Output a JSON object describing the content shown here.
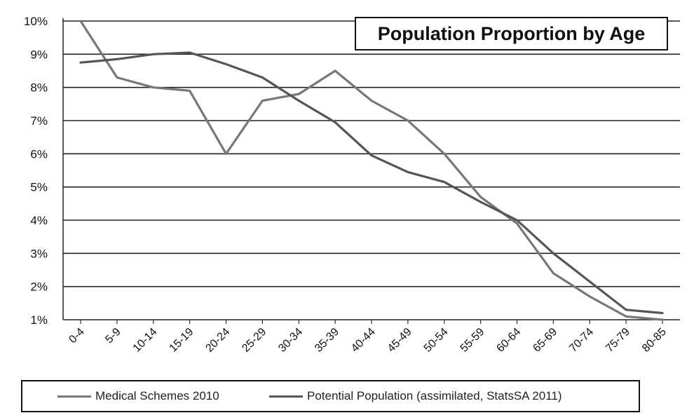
{
  "chart_data": {
    "type": "line",
    "title": "Population Proportion by Age",
    "categories": [
      "0-4",
      "5-9",
      "10-14",
      "15-19",
      "20-24",
      "25-29",
      "30-34",
      "35-39",
      "40-44",
      "45-49",
      "50-54",
      "55-59",
      "60-64",
      "65-69",
      "70-74",
      "75-79",
      "80-85"
    ],
    "series": [
      {
        "name": "Medical Schemes 2010",
        "color": "#777777",
        "values": [
          10.0,
          8.3,
          8.0,
          7.9,
          6.0,
          7.6,
          7.8,
          8.5,
          7.6,
          7.0,
          6.0,
          4.7,
          3.9,
          2.4,
          1.7,
          1.1,
          1.0
        ]
      },
      {
        "name": "Potential Population (assimilated, StatsSA 2011)",
        "color": "#555555",
        "values": [
          8.75,
          8.85,
          9.0,
          9.05,
          8.7,
          8.3,
          7.6,
          6.95,
          5.95,
          5.45,
          5.15,
          4.55,
          4.0,
          3.0,
          2.15,
          1.3,
          1.2
        ]
      }
    ],
    "yticks": [
      "1%",
      "2%",
      "3%",
      "4%",
      "5%",
      "6%",
      "7%",
      "8%",
      "9%",
      "10%"
    ],
    "ylim": [
      1,
      10
    ],
    "yunit": "%",
    "grid": true,
    "legend_position": "bottom"
  }
}
